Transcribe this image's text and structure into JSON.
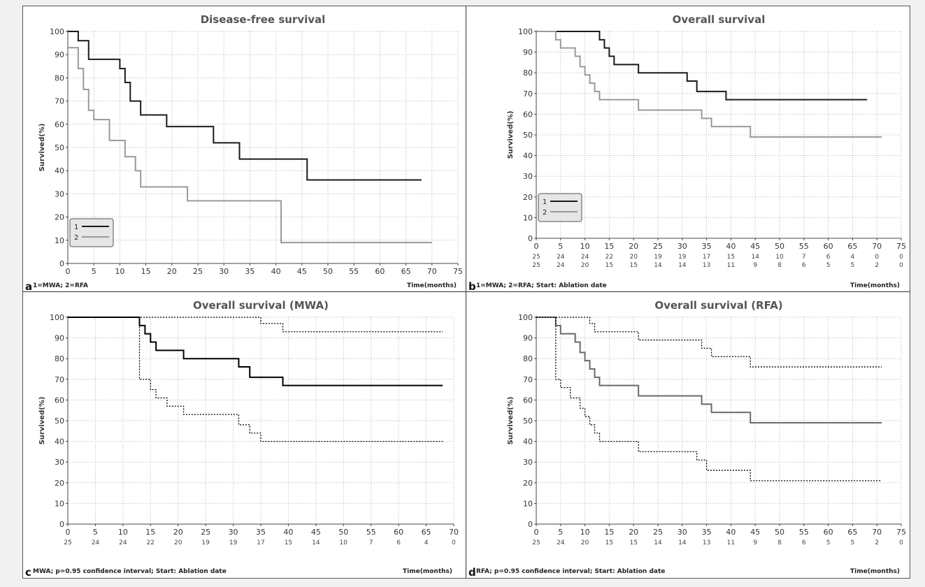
{
  "chart_data": [
    {
      "type": "line",
      "panel_letter": "a",
      "title": "Disease-free survival",
      "ylabel": "Survived(%)",
      "xlabel": "Time(months)",
      "footnote": "1=MWA; 2=RFA",
      "xlim": [
        0,
        75
      ],
      "ylim": [
        0,
        100
      ],
      "xticks": [
        0,
        5,
        10,
        15,
        20,
        25,
        30,
        35,
        40,
        45,
        50,
        55,
        60,
        65,
        70,
        75
      ],
      "yticks": [
        0,
        10,
        20,
        30,
        40,
        50,
        60,
        70,
        80,
        90,
        100
      ],
      "grid": true,
      "legend": {
        "position": "bottom-left",
        "entries": [
          "1",
          "2"
        ]
      },
      "series": [
        {
          "name": "1",
          "color": "#1a1a1a",
          "dash": false,
          "x": [
            0,
            2,
            4,
            6,
            10,
            11,
            12,
            14,
            19,
            28,
            33,
            46,
            68
          ],
          "y": [
            100,
            96,
            88,
            88,
            84,
            78,
            70,
            64,
            59,
            52,
            45,
            36,
            36
          ]
        },
        {
          "name": "2",
          "color": "#9a9a9a",
          "dash": false,
          "x": [
            0,
            2,
            3,
            4,
            5,
            6,
            8,
            11,
            13,
            14,
            23,
            41,
            70
          ],
          "y": [
            93,
            84,
            75,
            66,
            62,
            62,
            53,
            46,
            40,
            33,
            27,
            9,
            9
          ]
        }
      ]
    },
    {
      "type": "line",
      "panel_letter": "b",
      "title": "Overall survival",
      "ylabel": "Survived(%)",
      "xlabel": "Time(months)",
      "footnote": "1=MWA; 2=RFA; Start: Ablation date",
      "xlim": [
        0,
        75
      ],
      "ylim": [
        0,
        100
      ],
      "xticks": [
        0,
        5,
        10,
        15,
        20,
        25,
        30,
        35,
        40,
        45,
        50,
        55,
        60,
        65,
        70,
        75
      ],
      "yticks": [
        0,
        10,
        20,
        30,
        40,
        50,
        60,
        70,
        80,
        90,
        100
      ],
      "grid": true,
      "legend": {
        "position": "bottom-left",
        "entries": [
          "1",
          "2"
        ]
      },
      "at_risk": [
        [
          "25",
          "24",
          "24",
          "22",
          "20",
          "19",
          "19",
          "17",
          "15",
          "14",
          "10",
          "7",
          "6",
          "4",
          "0",
          "0"
        ],
        [
          "25",
          "24",
          "20",
          "15",
          "15",
          "14",
          "14",
          "13",
          "11",
          "9",
          "8",
          "6",
          "5",
          "5",
          "2",
          "0"
        ]
      ],
      "series": [
        {
          "name": "1",
          "color": "#1a1a1a",
          "dash": false,
          "x": [
            0,
            13,
            14,
            15,
            16,
            18,
            21,
            31,
            33,
            35,
            39,
            68
          ],
          "y": [
            100,
            96,
            92,
            88,
            84,
            84,
            80,
            76,
            71,
            71,
            67,
            67
          ]
        },
        {
          "name": "2",
          "color": "#9a9a9a",
          "dash": false,
          "x": [
            0,
            4,
            5,
            6,
            8,
            9,
            10,
            11,
            12,
            13,
            21,
            34,
            36,
            44,
            71
          ],
          "y": [
            100,
            96,
            92,
            92,
            88,
            83,
            79,
            75,
            71,
            67,
            62,
            58,
            54,
            49,
            49
          ]
        }
      ]
    },
    {
      "type": "line",
      "panel_letter": "c",
      "title": "Overall survival (MWA)",
      "ylabel": "Survived(%)",
      "xlabel": "Time(months)",
      "footnote": "MWA; p=0.95 confidence interval; Start: Ablation date",
      "xlim": [
        0,
        70
      ],
      "ylim": [
        0,
        100
      ],
      "xticks": [
        0,
        5,
        10,
        15,
        20,
        25,
        30,
        35,
        40,
        45,
        50,
        55,
        60,
        65,
        70
      ],
      "yticks": [
        0,
        10,
        20,
        30,
        40,
        50,
        60,
        70,
        80,
        90,
        100
      ],
      "grid": true,
      "at_risk": [
        [
          "25",
          "24",
          "24",
          "22",
          "20",
          "19",
          "19",
          "17",
          "15",
          "14",
          "10",
          "7",
          "6",
          "4",
          "0"
        ]
      ],
      "series": [
        {
          "color": "#000000",
          "dash": false,
          "x": [
            0,
            13,
            14,
            15,
            16,
            18,
            21,
            31,
            33,
            35,
            39,
            68
          ],
          "y": [
            100,
            96,
            92,
            88,
            84,
            84,
            80,
            76,
            71,
            71,
            67,
            67
          ]
        },
        {
          "color": "#000000",
          "dash": true,
          "x": [
            0,
            34,
            35,
            39,
            68
          ],
          "y": [
            100,
            100,
            97,
            93,
            93
          ]
        },
        {
          "color": "#000000",
          "dash": true,
          "x": [
            0,
            13,
            15,
            16,
            18,
            21,
            31,
            33,
            35,
            39,
            68
          ],
          "y": [
            100,
            70,
            65,
            61,
            57,
            53,
            48,
            44,
            40,
            40,
            40
          ]
        }
      ]
    },
    {
      "type": "line",
      "panel_letter": "d",
      "title": "Overall survival (RFA)",
      "ylabel": "Survived(%)",
      "xlabel": "Time(months)",
      "footnote": "RFA; p=0.95 confidence interval; Start: Ablation date",
      "xlim": [
        0,
        75
      ],
      "ylim": [
        0,
        100
      ],
      "xticks": [
        0,
        5,
        10,
        15,
        20,
        25,
        30,
        35,
        40,
        45,
        50,
        55,
        60,
        65,
        70,
        75
      ],
      "yticks": [
        0,
        10,
        20,
        30,
        40,
        50,
        60,
        70,
        80,
        90,
        100
      ],
      "grid": true,
      "at_risk": [
        [
          "25",
          "24",
          "20",
          "15",
          "15",
          "14",
          "14",
          "13",
          "11",
          "9",
          "8",
          "6",
          "5",
          "5",
          "2",
          "0"
        ]
      ],
      "series": [
        {
          "color": "#6a6a6a",
          "dash": false,
          "x": [
            0,
            4,
            5,
            6,
            8,
            9,
            10,
            11,
            12,
            13,
            21,
            34,
            36,
            44,
            71
          ],
          "y": [
            100,
            96,
            92,
            92,
            88,
            83,
            79,
            75,
            71,
            67,
            62,
            58,
            54,
            49,
            49
          ]
        },
        {
          "color": "#000000",
          "dash": true,
          "x": [
            0,
            10,
            11,
            12,
            13,
            21,
            33,
            34,
            36,
            44,
            71
          ],
          "y": [
            100,
            100,
            97,
            93,
            93,
            89,
            89,
            85,
            81,
            76,
            76
          ]
        },
        {
          "color": "#000000",
          "dash": true,
          "x": [
            0,
            4,
            5,
            7,
            9,
            10,
            11,
            12,
            13,
            21,
            33,
            35,
            44,
            71
          ],
          "y": [
            100,
            70,
            66,
            61,
            56,
            52,
            48,
            44,
            40,
            35,
            31,
            26,
            21,
            21
          ]
        }
      ]
    }
  ]
}
